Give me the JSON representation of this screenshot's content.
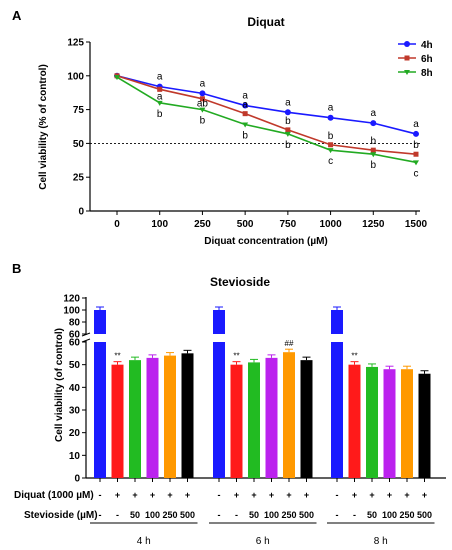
{
  "chart_data": [
    {
      "panel": "A",
      "type": "line",
      "title": "Diquat",
      "xlabel": "Diquat concentration (µM)",
      "ylabel": "Cell viability (% of control)",
      "categories": [
        "0",
        "100",
        "250",
        "500",
        "750",
        "1000",
        "1250",
        "1500"
      ],
      "yticks": [
        "0",
        "25",
        "50",
        "75",
        "100",
        "125"
      ],
      "ylim": [
        0,
        125
      ],
      "reference_line": 50,
      "legend": "top-right",
      "series": [
        {
          "name": "4h",
          "color": "#1a1aff",
          "values": [
            100,
            92,
            87,
            78,
            73,
            69,
            65,
            57
          ],
          "letters": [
            "",
            "a",
            "a",
            "a",
            "a",
            "a",
            "a",
            "a"
          ]
        },
        {
          "name": "6h",
          "color": "#c0392b",
          "values": [
            100,
            90,
            83,
            72,
            60,
            49,
            45,
            42
          ],
          "letters": [
            "",
            "a",
            "ab",
            "a",
            "b",
            "b",
            "b",
            "b"
          ]
        },
        {
          "name": "8h",
          "color": "#22aa22",
          "values": [
            99,
            80,
            75,
            64,
            57,
            45,
            42,
            36
          ],
          "letters": [
            "",
            "b",
            "b",
            "b",
            "b",
            "c",
            "b",
            "c"
          ]
        }
      ]
    },
    {
      "panel": "B",
      "type": "bar",
      "title": "Stevioside",
      "ylabel": "Cell viability (of control)",
      "upper_yticks": [
        "60",
        "80",
        "100",
        "120"
      ],
      "lower_yticks": [
        "0",
        "10",
        "20",
        "30",
        "40",
        "50",
        "60"
      ],
      "groups": [
        {
          "label": "4 h",
          "values": [
            100,
            50,
            52,
            53,
            54,
            55
          ],
          "marks": [
            "",
            "**",
            "",
            "",
            "",
            ""
          ]
        },
        {
          "label": "6 h",
          "values": [
            100,
            50,
            51,
            53,
            55.5,
            52
          ],
          "marks": [
            "",
            "**",
            "",
            "",
            "##",
            ""
          ]
        },
        {
          "label": "8 h",
          "values": [
            100,
            50,
            49,
            48,
            48,
            46
          ],
          "marks": [
            "",
            "**",
            "",
            "",
            "",
            ""
          ]
        }
      ],
      "bar_colors": [
        "#1a1aff",
        "#ff1a1a",
        "#22bb22",
        "#bb22ee",
        "#ff9900",
        "#000000"
      ],
      "treatment_rows": [
        {
          "label": "Diquat (1000 µM)",
          "values": [
            "-",
            "+",
            "+",
            "+",
            "+",
            "+"
          ]
        },
        {
          "label": "Stevioside (µM)",
          "values": [
            "-",
            "-",
            "50",
            "100",
            "250",
            "500"
          ]
        }
      ]
    }
  ],
  "panel_labels": [
    "A",
    "B"
  ]
}
